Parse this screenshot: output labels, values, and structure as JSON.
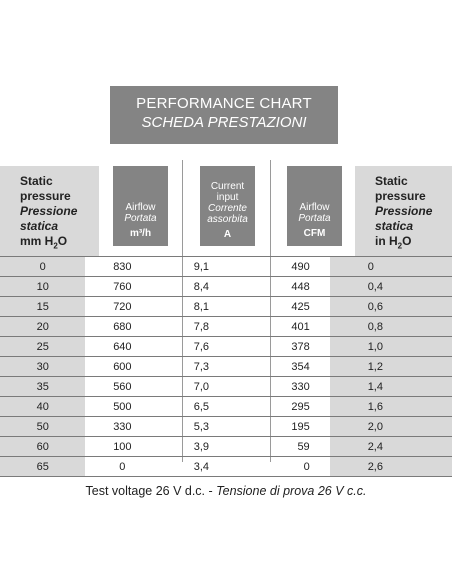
{
  "title": {
    "line1": "PERFORMANCE CHART",
    "line2": "SCHEDA PRESTAZIONI"
  },
  "headers": {
    "col0": {
      "en1": "Static",
      "en2": "pressure",
      "it1": "Pressione",
      "it2": "statica",
      "unit": "mm H",
      "sub": "2",
      "tail": "O"
    },
    "col1": {
      "en": "Airflow",
      "it": "Portata",
      "unit": "m³/h"
    },
    "col2": {
      "en1": "Current",
      "en2": "input",
      "it1": "Corrente",
      "it2": "assorbita",
      "unit": "A"
    },
    "col3": {
      "en": "Airflow",
      "it": "Portata",
      "unit": "CFM"
    },
    "col4": {
      "en1": "Static",
      "en2": "pressure",
      "it1": "Pressione",
      "it2": "statica",
      "unit": "in H",
      "sub": "2",
      "tail": "O"
    }
  },
  "rows": [
    [
      "0",
      "830",
      "9,1",
      "490",
      "0"
    ],
    [
      "10",
      "760",
      "8,4",
      "448",
      "0,4"
    ],
    [
      "15",
      "720",
      "8,1",
      "425",
      "0,6"
    ],
    [
      "20",
      "680",
      "7,8",
      "401",
      "0,8"
    ],
    [
      "25",
      "640",
      "7,6",
      "378",
      "1,0"
    ],
    [
      "30",
      "600",
      "7,3",
      "354",
      "1,2"
    ],
    [
      "35",
      "560",
      "7,0",
      "330",
      "1,4"
    ],
    [
      "40",
      "500",
      "6,5",
      "295",
      "1,6"
    ],
    [
      "50",
      "330",
      "5,3",
      "195",
      "2,0"
    ],
    [
      "60",
      "100",
      "3,9",
      "59",
      "2,4"
    ],
    [
      "65",
      "0",
      "3,4",
      "0",
      "2,6"
    ]
  ],
  "footer": {
    "en": "Test voltage 26 V d.c. - ",
    "it": "Tensione di prova 26 V c.c."
  }
}
